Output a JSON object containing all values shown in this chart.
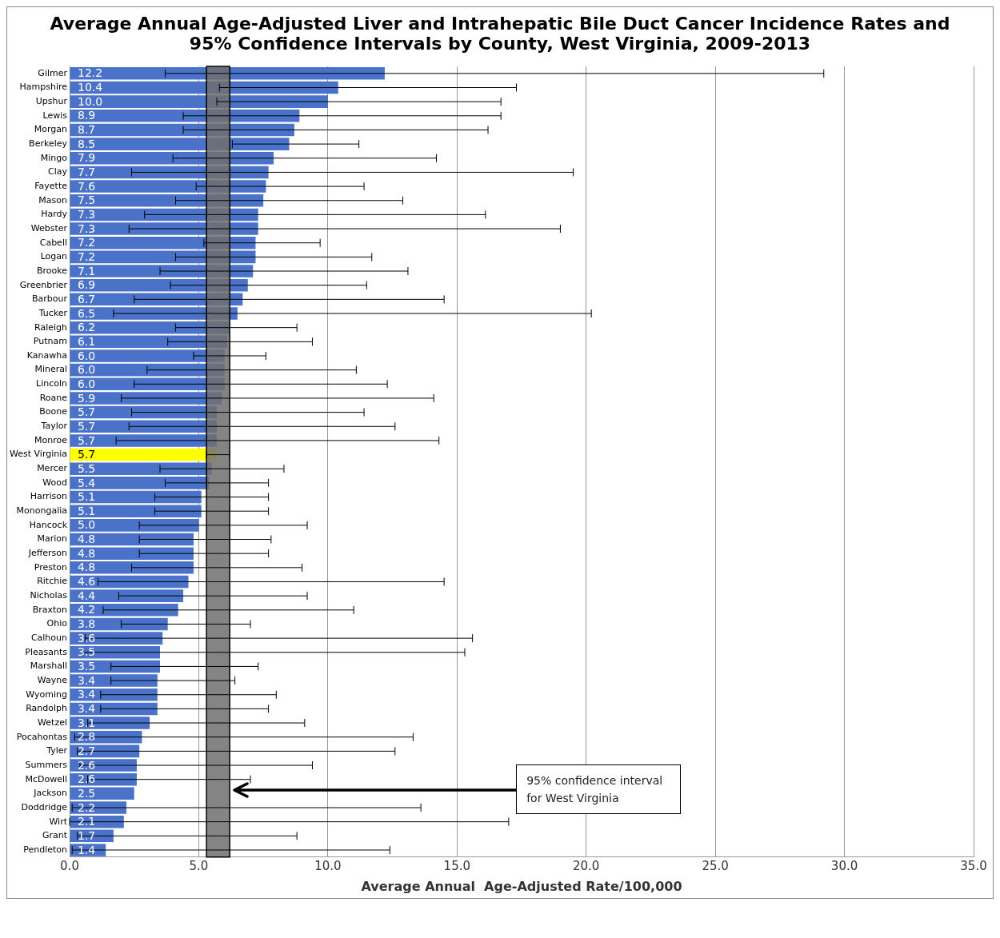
{
  "chart_data": {
    "type": "bar",
    "orientation": "horizontal",
    "title": "Average Annual Age-Adjusted Liver and Intrahepatic Bile Duct Cancer Incidence Rates and 95% Confidence Intervals by County, West Virginia, 2009-2013",
    "xlabel": "Average Annual  Age-Adjusted Rate/100,000",
    "categories": [
      "Gilmer",
      "Hampshire",
      "Upshur",
      "Lewis",
      "Morgan",
      "Berkeley",
      "Mingo",
      "Clay",
      "Fayette",
      "Mason",
      "Hardy",
      "Webster",
      "Cabell",
      "Logan",
      "Brooke",
      "Greenbrier",
      "Barbour",
      "Tucker",
      "Raleigh",
      "Putnam",
      "Kanawha",
      "Mineral",
      "Lincoln",
      "Roane",
      "Boone",
      "Taylor",
      "Monroe",
      "West Virginia",
      "Mercer",
      "Wood",
      "Harrison",
      "Monongalia",
      "Hancock",
      "Marion",
      "Jefferson",
      "Preston",
      "Ritchie",
      "Nicholas",
      "Braxton",
      "Ohio",
      "Calhoun",
      "Pleasants",
      "Marshall",
      "Wayne",
      "Wyoming",
      "Randolph",
      "Wetzel",
      "Pocahontas",
      "Tyler",
      "Summers",
      "McDowell",
      "Jackson",
      "Doddridge",
      "Wirt",
      "Grant",
      "Pendleton"
    ],
    "values": [
      12.2,
      10.4,
      10.0,
      8.9,
      8.7,
      8.5,
      7.9,
      7.7,
      7.6,
      7.5,
      7.3,
      7.3,
      7.2,
      7.2,
      7.1,
      6.9,
      6.7,
      6.5,
      6.2,
      6.1,
      6.0,
      6.0,
      6.0,
      5.9,
      5.7,
      5.7,
      5.7,
      5.7,
      5.5,
      5.4,
      5.1,
      5.1,
      5.0,
      4.8,
      4.8,
      4.8,
      4.6,
      4.4,
      4.2,
      3.8,
      3.6,
      3.5,
      3.5,
      3.4,
      3.4,
      3.4,
      3.1,
      2.8,
      2.7,
      2.6,
      2.6,
      2.5,
      2.2,
      2.1,
      1.7,
      1.4
    ],
    "value_labels": [
      "12.2",
      "10.4",
      "10.0",
      "8.9",
      "8.7",
      "8.5",
      "7.9",
      "7.7",
      "7.6",
      "7.5",
      "7.3",
      "7.3",
      "7.2",
      "7.2",
      "7.1",
      "6.9",
      "6.7",
      "6.5",
      "6.2",
      "6.1",
      "6.0",
      "6.0",
      "6.0",
      "5.9",
      "5.7",
      "5.7",
      "5.7",
      "5.7",
      "5.5",
      "5.4",
      "5.1",
      "5.1",
      "5.0",
      "4.8",
      "4.8",
      "4.8",
      "4.6",
      "4.4",
      "4.2",
      "3.8",
      "3.6",
      "3.5",
      "3.5",
      "3.4",
      "3.4",
      "3.4",
      "3.1",
      "2.8",
      "2.7",
      "2.6",
      "2.6",
      "2.5",
      "2.2",
      "2.1",
      "1.7",
      "1.4"
    ],
    "errors": [
      [
        3.7,
        29.2
      ],
      [
        5.8,
        17.3
      ],
      [
        5.7,
        16.7
      ],
      [
        4.4,
        16.7
      ],
      [
        4.4,
        16.2
      ],
      [
        6.3,
        11.2
      ],
      [
        4.0,
        14.2
      ],
      [
        2.4,
        19.5
      ],
      [
        4.9,
        11.4
      ],
      [
        4.1,
        12.9
      ],
      [
        2.9,
        16.1
      ],
      [
        2.3,
        19.0
      ],
      [
        5.2,
        9.7
      ],
      [
        4.1,
        11.7
      ],
      [
        3.5,
        13.1
      ],
      [
        3.9,
        11.5
      ],
      [
        2.5,
        14.5
      ],
      [
        1.7,
        20.2
      ],
      [
        4.1,
        8.8
      ],
      [
        3.8,
        9.4
      ],
      [
        4.8,
        7.6
      ],
      [
        3.0,
        11.1
      ],
      [
        2.5,
        12.3
      ],
      [
        2.0,
        14.1
      ],
      [
        2.4,
        11.4
      ],
      [
        2.3,
        12.6
      ],
      [
        1.8,
        14.3
      ],
      [
        5.3,
        6.2
      ],
      [
        3.5,
        8.3
      ],
      [
        3.7,
        7.7
      ],
      [
        3.3,
        7.7
      ],
      [
        3.3,
        7.7
      ],
      [
        2.7,
        9.2
      ],
      [
        2.7,
        7.8
      ],
      [
        2.7,
        7.7
      ],
      [
        2.4,
        9.0
      ],
      [
        1.1,
        14.5
      ],
      [
        1.9,
        9.2
      ],
      [
        1.3,
        11.0
      ],
      [
        2.0,
        7.0
      ],
      [
        0.6,
        15.6
      ],
      [
        0.5,
        15.3
      ],
      [
        1.6,
        7.3
      ],
      [
        1.6,
        6.4
      ],
      [
        1.2,
        8.0
      ],
      [
        1.2,
        7.7
      ],
      [
        0.7,
        9.1
      ],
      [
        0.2,
        13.3
      ],
      [
        0.3,
        12.6
      ],
      [
        0.4,
        9.4
      ],
      [
        0.7,
        7.0
      ],
      null,
      [
        0.1,
        13.6
      ],
      [
        0.0,
        17.0
      ],
      [
        0.3,
        8.8
      ],
      [
        0.1,
        12.4
      ]
    ],
    "colors": [
      "#4a72c8",
      "#4a72c8",
      "#4a72c8",
      "#4a72c8",
      "#4a72c8",
      "#4a72c8",
      "#4a72c8",
      "#4a72c8",
      "#4a72c8",
      "#4a72c8",
      "#4a72c8",
      "#4a72c8",
      "#4a72c8",
      "#4a72c8",
      "#4a72c8",
      "#4a72c8",
      "#4a72c8",
      "#4a72c8",
      "#4a72c8",
      "#4a72c8",
      "#4a72c8",
      "#4a72c8",
      "#4a72c8",
      "#4a72c8",
      "#4a72c8",
      "#4a72c8",
      "#4a72c8",
      "#ffff00",
      "#4a72c8",
      "#4a72c8",
      "#4a72c8",
      "#4a72c8",
      "#4a72c8",
      "#4a72c8",
      "#4a72c8",
      "#4a72c8",
      "#4a72c8",
      "#4a72c8",
      "#4a72c8",
      "#4a72c8",
      "#4a72c8",
      "#4a72c8",
      "#4a72c8",
      "#4a72c8",
      "#4a72c8",
      "#4a72c8",
      "#4a72c8",
      "#4a72c8",
      "#4a72c8",
      "#4a72c8",
      "#4a72c8",
      "#4a72c8",
      "#4a72c8",
      "#4a72c8",
      "#4a72c8",
      "#4a72c8"
    ],
    "xlim": [
      0,
      35
    ],
    "xticks": [
      {
        "value": 0,
        "label": "0.0"
      },
      {
        "value": 5,
        "label": "5.0"
      },
      {
        "value": 10,
        "label": "10.0"
      },
      {
        "value": 15,
        "label": "15.0"
      },
      {
        "value": 20,
        "label": "20.0"
      },
      {
        "value": 25,
        "label": "25.0"
      },
      {
        "value": 30,
        "label": "30.0"
      },
      {
        "value": 35,
        "label": "35.0"
      }
    ],
    "bands": [
      {
        "axis": "x",
        "from": 5.3,
        "to": 6.2,
        "color": "#6e6e6e"
      }
    ],
    "annotations": [
      "95% confidence interval for West Virginia"
    ],
    "grid": "x",
    "legend": false
  }
}
